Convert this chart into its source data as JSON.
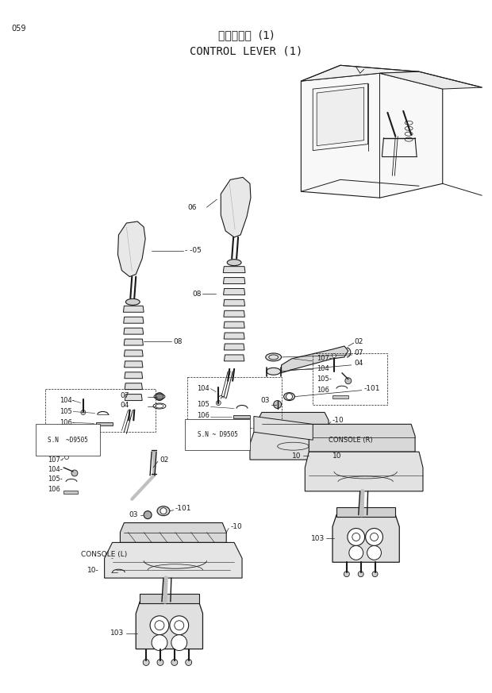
{
  "page_number": "059",
  "title_japanese": "操作レバー  (1)",
  "title_english": "CONTROL LEVER (1)",
  "bg": "#ffffff",
  "lc": "#1a1a1a",
  "fig_width": 6.2,
  "fig_height": 8.73,
  "dpi": 100
}
